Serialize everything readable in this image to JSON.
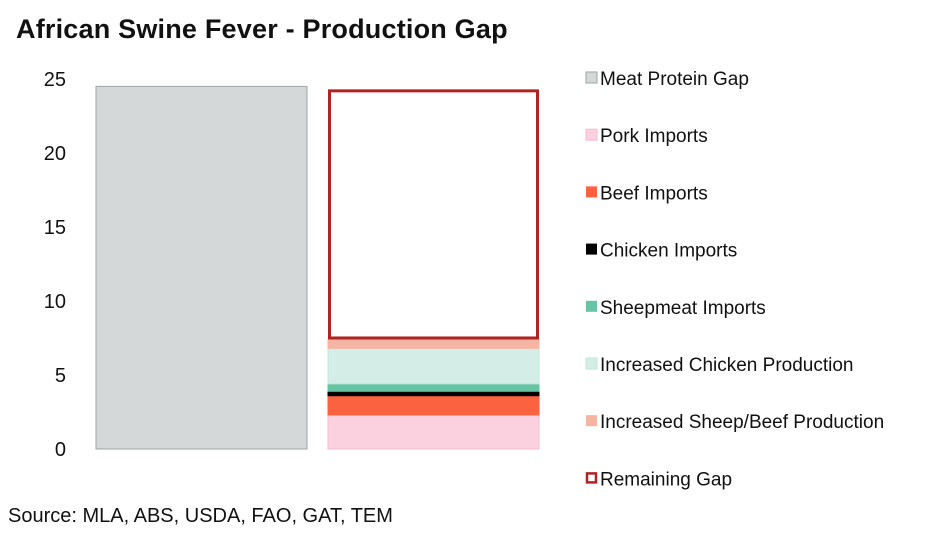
{
  "title": "African Swine Fever - Production Gap",
  "source": "Source: MLA, ABS, USDA, FAO, GAT, TEM",
  "chart_data": {
    "type": "bar",
    "stacked": true,
    "title": "African Swine Fever - Production Gap",
    "xlabel": "",
    "ylabel": "",
    "ylim": [
      0,
      25
    ],
    "y_ticks": [
      0,
      5,
      10,
      15,
      20,
      25
    ],
    "grid": false,
    "legend_position": "right",
    "categories": [
      "",
      ""
    ],
    "series": [
      {
        "name": "Meat Protein Gap",
        "color": "#d5d8d9",
        "stroke": "#9ea3a5",
        "style": "fill",
        "values": [
          24.5,
          0
        ]
      },
      {
        "name": "Pork Imports",
        "color": "#fbd0df",
        "stroke": "#f6bccd",
        "style": "fill",
        "values": [
          0,
          2.3
        ]
      },
      {
        "name": "Beef Imports",
        "color": "#fa6240",
        "stroke": "#fa6240",
        "style": "fill",
        "values": [
          0,
          1.3
        ]
      },
      {
        "name": "Chicken Imports",
        "color": "#000000",
        "stroke": "#000000",
        "style": "fill",
        "values": [
          0,
          0.3
        ]
      },
      {
        "name": "Sheepmeat Imports",
        "color": "#64c4a3",
        "stroke": "#64c4a3",
        "style": "fill",
        "values": [
          0,
          0.5
        ]
      },
      {
        "name": "Increased Chicken Production",
        "color": "#d4ede6",
        "stroke": "#c2e6da",
        "style": "fill",
        "values": [
          0,
          2.4
        ]
      },
      {
        "name": "Increased Sheep/Beef Production",
        "color": "#f6b4a3",
        "stroke": "#f6b4a3",
        "style": "fill",
        "values": [
          0,
          0.6
        ]
      },
      {
        "name": "Remaining Gap",
        "color": "#ffffff",
        "stroke": "#b22222",
        "style": "outline",
        "values": [
          0,
          16.9
        ]
      }
    ]
  }
}
